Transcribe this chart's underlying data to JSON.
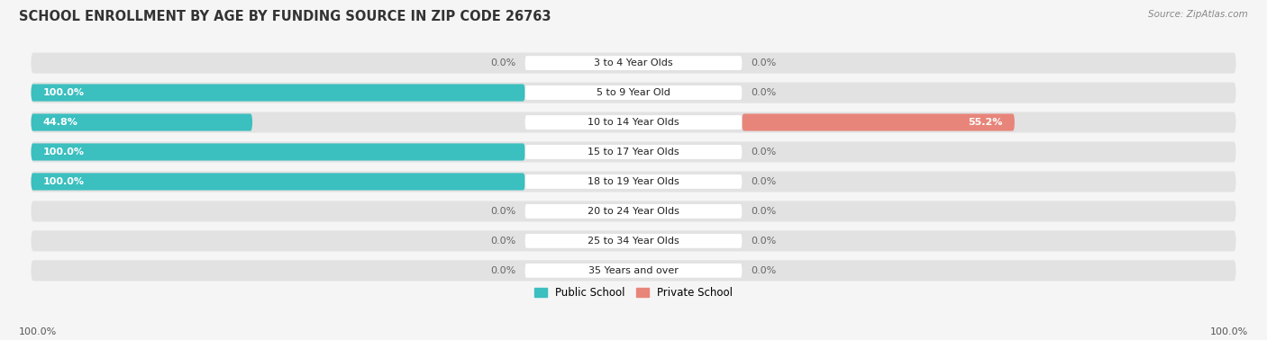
{
  "title": "SCHOOL ENROLLMENT BY AGE BY FUNDING SOURCE IN ZIP CODE 26763",
  "source": "Source: ZipAtlas.com",
  "categories": [
    "3 to 4 Year Olds",
    "5 to 9 Year Old",
    "10 to 14 Year Olds",
    "15 to 17 Year Olds",
    "18 to 19 Year Olds",
    "20 to 24 Year Olds",
    "25 to 34 Year Olds",
    "35 Years and over"
  ],
  "public_values": [
    0.0,
    100.0,
    44.8,
    100.0,
    100.0,
    0.0,
    0.0,
    0.0
  ],
  "private_values": [
    0.0,
    0.0,
    55.2,
    0.0,
    0.0,
    0.0,
    0.0,
    0.0
  ],
  "public_color": "#3BBFBF",
  "private_color": "#E8857A",
  "background_color": "#f5f5f5",
  "bar_bg_color": "#e2e2e2",
  "title_fontsize": 10.5,
  "label_fontsize": 8.0,
  "value_fontsize": 8.0,
  "axis_max": 100.0,
  "legend_public": "Public School",
  "legend_private": "Private School",
  "left_axis_label": "100.0%",
  "right_axis_label": "100.0%"
}
